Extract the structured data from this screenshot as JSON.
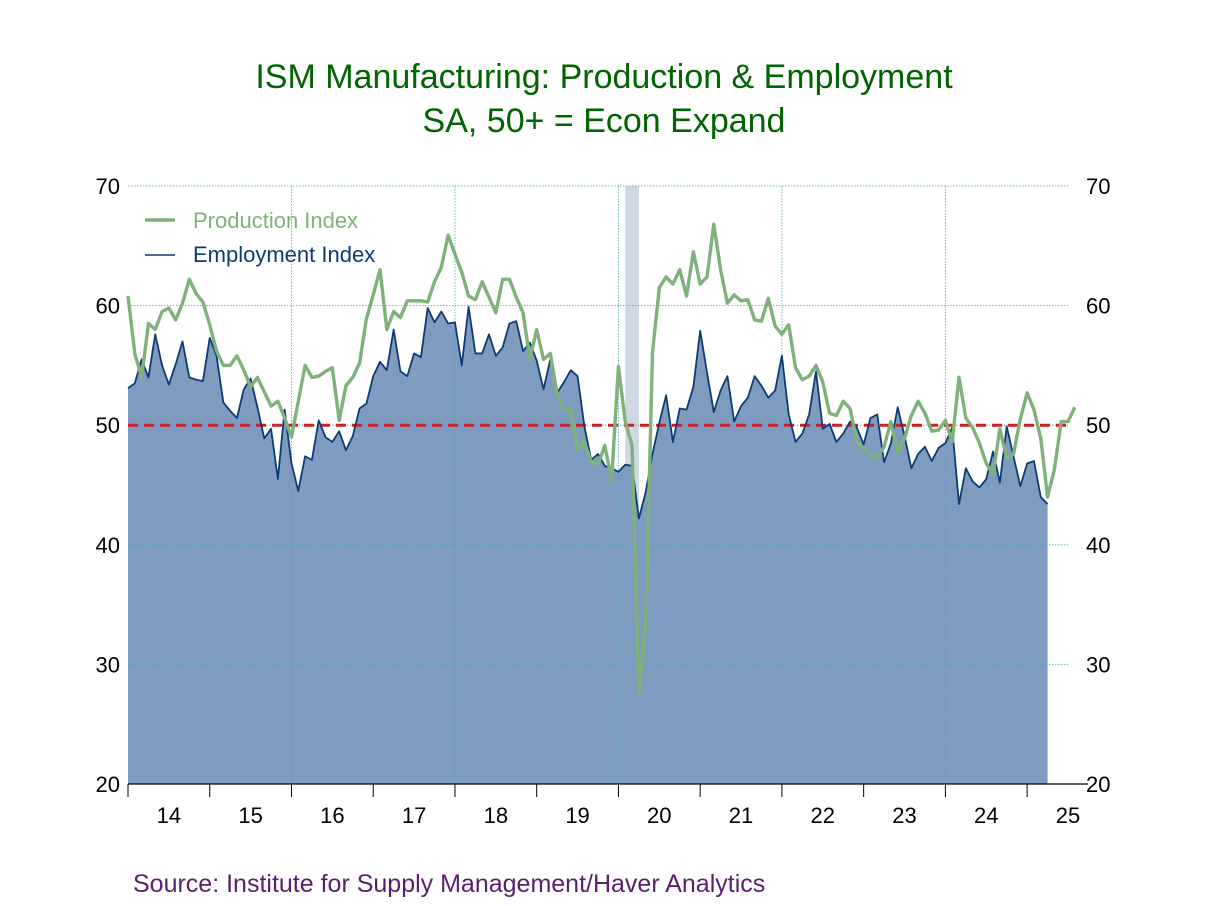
{
  "title": "ISM Manufacturing: Production & Employment",
  "subtitle": "SA, 50+ = Econ Expand",
  "source": "Source:  Institute for Supply Management/Haver Analytics",
  "colors": {
    "title": "#006400",
    "employment_fill": "#7f9bc0",
    "employment_line": "#0d3b73",
    "production_line": "#7fb27a",
    "threshold": "#cc2026",
    "recession": "#cdd8e3",
    "grid": "#4aa3b8",
    "source": "#5a1e6e"
  },
  "chart_data": {
    "type": "area",
    "x_start": "2014-01",
    "frequency": "monthly",
    "ylim": [
      20,
      70
    ],
    "yticks": [
      "20",
      "30",
      "40",
      "50",
      "60",
      "70"
    ],
    "xticks": [
      "14",
      "15",
      "16",
      "17",
      "18",
      "19",
      "20",
      "21",
      "22",
      "23",
      "24",
      "25"
    ],
    "threshold": 50,
    "recession": {
      "start": "2020-02",
      "end": "2020-04"
    },
    "grid": true,
    "legend_position": "top-left",
    "series": [
      {
        "name": "Production Index",
        "type": "line",
        "values": [
          60.8,
          56.0,
          54.0,
          58.5,
          58.0,
          59.5,
          59.8,
          58.8,
          60.2,
          62.2,
          61.0,
          60.3,
          58.4,
          56.2,
          55.0,
          55.0,
          55.8,
          54.6,
          53.2,
          54.0,
          52.8,
          51.6,
          52.0,
          50.6,
          49.0,
          52.0,
          55.0,
          54.0,
          54.1,
          54.5,
          54.8,
          50.4,
          53.3,
          54.0,
          55.2,
          58.9,
          60.9,
          63.0,
          58.0,
          59.5,
          59.0,
          60.4,
          60.4,
          60.4,
          60.3,
          62.0,
          63.2,
          65.9,
          64.3,
          62.8,
          60.8,
          60.5,
          62.0,
          60.7,
          59.4,
          62.2,
          62.2,
          60.7,
          59.4,
          55.5,
          58.0,
          55.5,
          56.0,
          52.6,
          51.3,
          51.3,
          48.0,
          48.6,
          46.9,
          46.7,
          48.3,
          45.4,
          54.9,
          50.3,
          48.3,
          27.5,
          33.3,
          56.1,
          61.5,
          62.4,
          61.8,
          63.0,
          60.8,
          64.5,
          61.8,
          62.4,
          66.8,
          63.0,
          60.2,
          60.9,
          60.4,
          60.5,
          58.8,
          58.7,
          60.6,
          58.3,
          57.6,
          58.4,
          54.8,
          53.8,
          54.1,
          55.0,
          53.6,
          51.0,
          50.8,
          52.0,
          51.4,
          48.6,
          48.0,
          47.5,
          47.3,
          48.2,
          50.3,
          47.7,
          48.9,
          50.8,
          52.0,
          51.0,
          49.5,
          49.6,
          50.4,
          48.6,
          54.0,
          50.6,
          49.8,
          48.5,
          46.8,
          45.9,
          49.7,
          47.2,
          47.6,
          50.5,
          52.7,
          51.3,
          48.9,
          44.0,
          46.3,
          50.3,
          50.3,
          51.5
        ]
      },
      {
        "name": "Employment Index",
        "type": "area",
        "values": [
          53.1,
          53.5,
          55.5,
          54.0,
          57.6,
          55.0,
          53.4,
          55.1,
          57.0,
          54.0,
          53.8,
          53.7,
          57.3,
          55.8,
          51.9,
          51.2,
          50.6,
          53.0,
          53.9,
          51.5,
          48.9,
          49.7,
          45.5,
          51.3,
          46.8,
          44.5,
          47.4,
          47.1,
          50.4,
          49.0,
          48.6,
          49.5,
          47.9,
          49.1,
          51.4,
          51.8,
          54.1,
          55.3,
          54.6,
          58.0,
          54.5,
          54.1,
          56.0,
          55.7,
          59.8,
          58.6,
          59.5,
          58.5,
          58.6,
          55.0,
          59.9,
          56.0,
          56.0,
          57.6,
          55.8,
          56.5,
          58.5,
          58.7,
          56.2,
          56.9,
          55.4,
          53.0,
          55.5,
          52.7,
          53.6,
          54.6,
          54.1,
          49.9,
          47.1,
          47.6,
          46.6,
          46.4,
          46.1,
          46.7,
          46.6,
          42.2,
          44.4,
          47.6,
          50.2,
          52.5,
          48.6,
          51.4,
          51.3,
          53.2,
          57.9,
          54.4,
          51.1,
          52.9,
          54.1,
          50.3,
          51.6,
          52.3,
          54.1,
          53.3,
          52.3,
          52.9,
          55.8,
          50.9,
          48.6,
          49.3,
          50.9,
          54.5,
          49.7,
          50.1,
          48.6,
          49.3,
          50.3,
          49.8,
          48.4,
          50.6,
          50.9,
          46.9,
          48.5,
          51.5,
          49.1,
          46.4,
          47.6,
          48.2,
          47.0,
          48.1,
          48.5,
          49.8,
          43.4,
          46.4,
          45.3,
          44.8,
          45.5,
          47.8,
          45.2,
          49.9,
          47.4,
          44.9,
          46.8,
          47.0,
          44.0,
          43.4
        ]
      }
    ]
  }
}
